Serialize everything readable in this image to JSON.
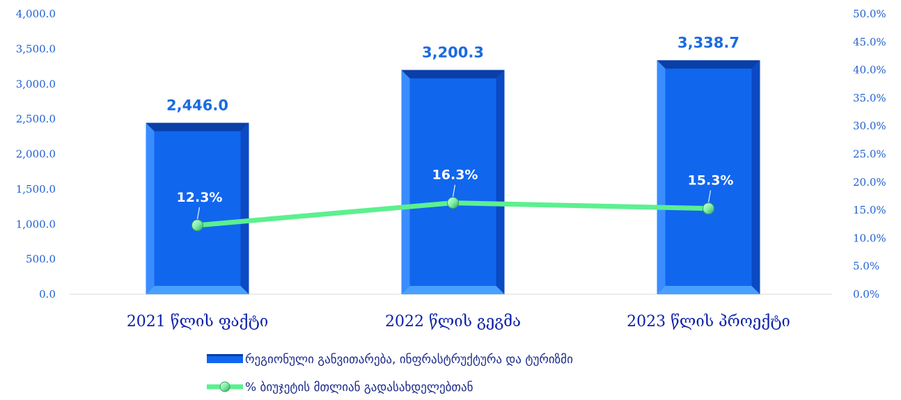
{
  "chart_data": {
    "type": "bar",
    "categories": [
      "2021 წლის ფაქტი",
      "2022  წლის გეგმა",
      "2023 წლის პროექტი"
    ],
    "series": [
      {
        "name": "რეგიონული განვითარება, ინფრასტრუქტურა და ტურიზმი",
        "type": "bar",
        "axis": "left",
        "values": [
          2446.0,
          3200.3,
          3338.7
        ],
        "labels": [
          "2,446.0",
          "3,200.3",
          "3,338.7"
        ],
        "color": "#1166ee"
      },
      {
        "name": "% ბიუჯეტის მთლიან გადასახდელებთან",
        "type": "line",
        "axis": "right",
        "values": [
          12.3,
          16.3,
          15.3
        ],
        "labels": [
          "12.3%",
          "16.3%",
          "15.3%"
        ],
        "color": "#5cf08f"
      }
    ],
    "y_left": {
      "min": 0,
      "max": 4000,
      "ticks": [
        "0.0",
        "500.0",
        "1,000.0",
        "1,500.0",
        "2,000.0",
        "2,500.0",
        "3,000.0",
        "3,500.0",
        "4,000.0"
      ]
    },
    "y_right": {
      "min": 0,
      "max": 50,
      "ticks": [
        "0.0%",
        "5.0%",
        "10.0%",
        "15.0%",
        "20.0%",
        "25.0%",
        "30.0%",
        "35.0%",
        "40.0%",
        "45.0%",
        "50.0%"
      ]
    },
    "grid": false,
    "legend_position": "bottom"
  }
}
